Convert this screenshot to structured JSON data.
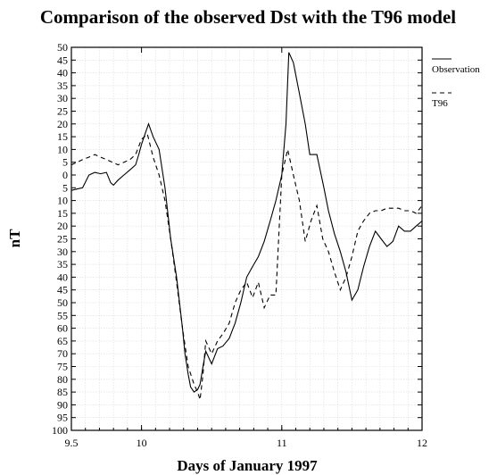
{
  "chart_data": {
    "type": "line",
    "title": "Comparison of the observed Dst with the T96 model",
    "xlabel": "Days of January 1997",
    "ylabel": "nT",
    "xlim": [
      9.5,
      12
    ],
    "ylim": [
      -100,
      50
    ],
    "x_ticks": [
      9.5,
      10,
      11,
      12
    ],
    "x_tick_labels": [
      "9.5",
      "10",
      "11",
      "12"
    ],
    "y_ticks": [
      50,
      45,
      40,
      35,
      30,
      25,
      20,
      15,
      10,
      5,
      0,
      -5,
      -10,
      -15,
      -20,
      -25,
      -30,
      -35,
      -40,
      -45,
      -50,
      -55,
      -60,
      -65,
      -70,
      -75,
      -80,
      -85,
      -90,
      -95,
      -100
    ],
    "y_tick_labels": [
      "50",
      "45",
      "40",
      "35",
      "30",
      "25",
      "20",
      "15",
      "10",
      "5",
      "0",
      "5",
      "10",
      "15",
      "20",
      "25",
      "30",
      "35",
      "40",
      "45",
      "50",
      "55",
      "60",
      "65",
      "70",
      "75",
      "80",
      "85",
      "90",
      "95",
      "100"
    ],
    "grid": true,
    "legend_position": "outside-right-top",
    "series": [
      {
        "name": "Observation",
        "style": "solid",
        "color": "#000000",
        "x": [
          9.5,
          9.54,
          9.58,
          9.625,
          9.667,
          9.708,
          9.75,
          9.78,
          9.8,
          9.833,
          9.875,
          9.917,
          9.958,
          9.98,
          10.0,
          10.025,
          10.05,
          10.083,
          10.125,
          10.167,
          10.208,
          10.25,
          10.292,
          10.31,
          10.333,
          10.35,
          10.375,
          10.4,
          10.417,
          10.438,
          10.458,
          10.5,
          10.542,
          10.58,
          10.625,
          10.667,
          10.708,
          10.75,
          10.79,
          10.833,
          10.875,
          10.917,
          10.958,
          11.0,
          11.03,
          11.05,
          11.083,
          11.125,
          11.167,
          11.2,
          11.25,
          11.3,
          11.333,
          11.375,
          11.417,
          11.458,
          11.5,
          11.542,
          11.583,
          11.625,
          11.667,
          11.708,
          11.75,
          11.792,
          11.833,
          11.875,
          11.917,
          11.958,
          12.0
        ],
        "y": [
          -6,
          -5.5,
          -5,
          0,
          1,
          0.5,
          1,
          -3,
          -4,
          -2,
          0,
          2,
          4,
          8,
          12,
          16,
          20,
          15,
          10,
          -5,
          -25,
          -40,
          -60,
          -70,
          -78,
          -83,
          -85,
          -84,
          -82,
          -75,
          -69,
          -74,
          -68,
          -67,
          -64,
          -58,
          -50,
          -40,
          -36,
          -32,
          -26,
          -18,
          -10,
          0,
          20,
          48,
          44,
          32,
          20,
          8,
          8,
          -5,
          -14,
          -23,
          -30,
          -38,
          -49,
          -45,
          -36,
          -28,
          -22,
          -25,
          -28,
          -26,
          -20,
          -22,
          -22,
          -20,
          -18
        ]
      },
      {
        "name": "T96",
        "style": "dashed",
        "color": "#000000",
        "x": [
          9.5,
          9.54,
          9.58,
          9.625,
          9.667,
          9.708,
          9.75,
          9.792,
          9.833,
          9.875,
          9.917,
          9.958,
          10.0,
          10.042,
          10.083,
          10.125,
          10.167,
          10.208,
          10.25,
          10.292,
          10.333,
          10.375,
          10.4,
          10.417,
          10.438,
          10.458,
          10.5,
          10.542,
          10.583,
          10.625,
          10.667,
          10.708,
          10.75,
          10.792,
          10.833,
          10.875,
          10.917,
          10.958,
          11.0,
          11.042,
          11.083,
          11.125,
          11.167,
          11.208,
          11.25,
          11.292,
          11.333,
          11.375,
          11.417,
          11.458,
          11.5,
          11.542,
          11.583,
          11.625,
          11.667,
          11.708,
          11.75,
          11.792,
          11.833,
          11.875,
          11.917,
          11.958,
          12.0
        ],
        "y": [
          4,
          5,
          6,
          7,
          8,
          7,
          6,
          5,
          4,
          5,
          6,
          8,
          14,
          16,
          7,
          0,
          -10,
          -25,
          -42,
          -60,
          -75,
          -82,
          -85,
          -88,
          -78,
          -65,
          -70,
          -65,
          -62,
          -58,
          -50,
          -45,
          -42,
          -48,
          -42,
          -52,
          -47,
          -47,
          0,
          10,
          0,
          -10,
          -26,
          -18,
          -12,
          -25,
          -30,
          -38,
          -45,
          -40,
          -32,
          -22,
          -18,
          -15,
          -14,
          -14,
          -13,
          -13,
          -13,
          -14,
          -14,
          -15,
          -12
        ]
      }
    ]
  }
}
